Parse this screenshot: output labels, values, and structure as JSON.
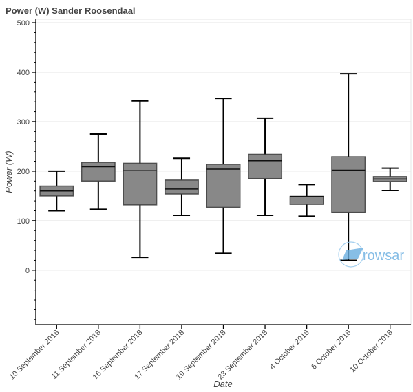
{
  "chart_data": {
    "type": "box",
    "title": "Power (W)  Sander Roosendaal",
    "xlabel": "Date",
    "ylabel": "Power (W)",
    "ylim": [
      -110,
      507
    ],
    "yticks": [
      0,
      100,
      200,
      300,
      400,
      500
    ],
    "grid": true,
    "box_color": "#888888",
    "watermark": "rowsar",
    "watermark_color": "#6aaee0",
    "categories": [
      "10 September 2018",
      "11 September 2018",
      "16 September 2018",
      "17 September 2018",
      "19 September 2018",
      "23 September 2018",
      "4 October 2018",
      "6 October 2018",
      "10 October 2018"
    ],
    "boxes": [
      {
        "min": 120,
        "q1": 150,
        "median": 160,
        "q3": 170,
        "max": 200
      },
      {
        "min": 123,
        "q1": 180,
        "median": 209,
        "q3": 218,
        "max": 275
      },
      {
        "min": 26,
        "q1": 132,
        "median": 201,
        "q3": 216,
        "max": 342
      },
      {
        "min": 111,
        "q1": 154,
        "median": 164,
        "q3": 182,
        "max": 226
      },
      {
        "min": 34,
        "q1": 127,
        "median": 204,
        "q3": 214,
        "max": 347
      },
      {
        "min": 111,
        "q1": 185,
        "median": 221,
        "q3": 234,
        "max": 307
      },
      {
        "min": 109,
        "q1": 133,
        "median": 149,
        "q3": 149,
        "max": 173
      },
      {
        "min": 20,
        "q1": 117,
        "median": 202,
        "q3": 229,
        "max": 397
      },
      {
        "min": 161,
        "q1": 179,
        "median": 184,
        "q3": 189,
        "max": 206
      }
    ]
  }
}
